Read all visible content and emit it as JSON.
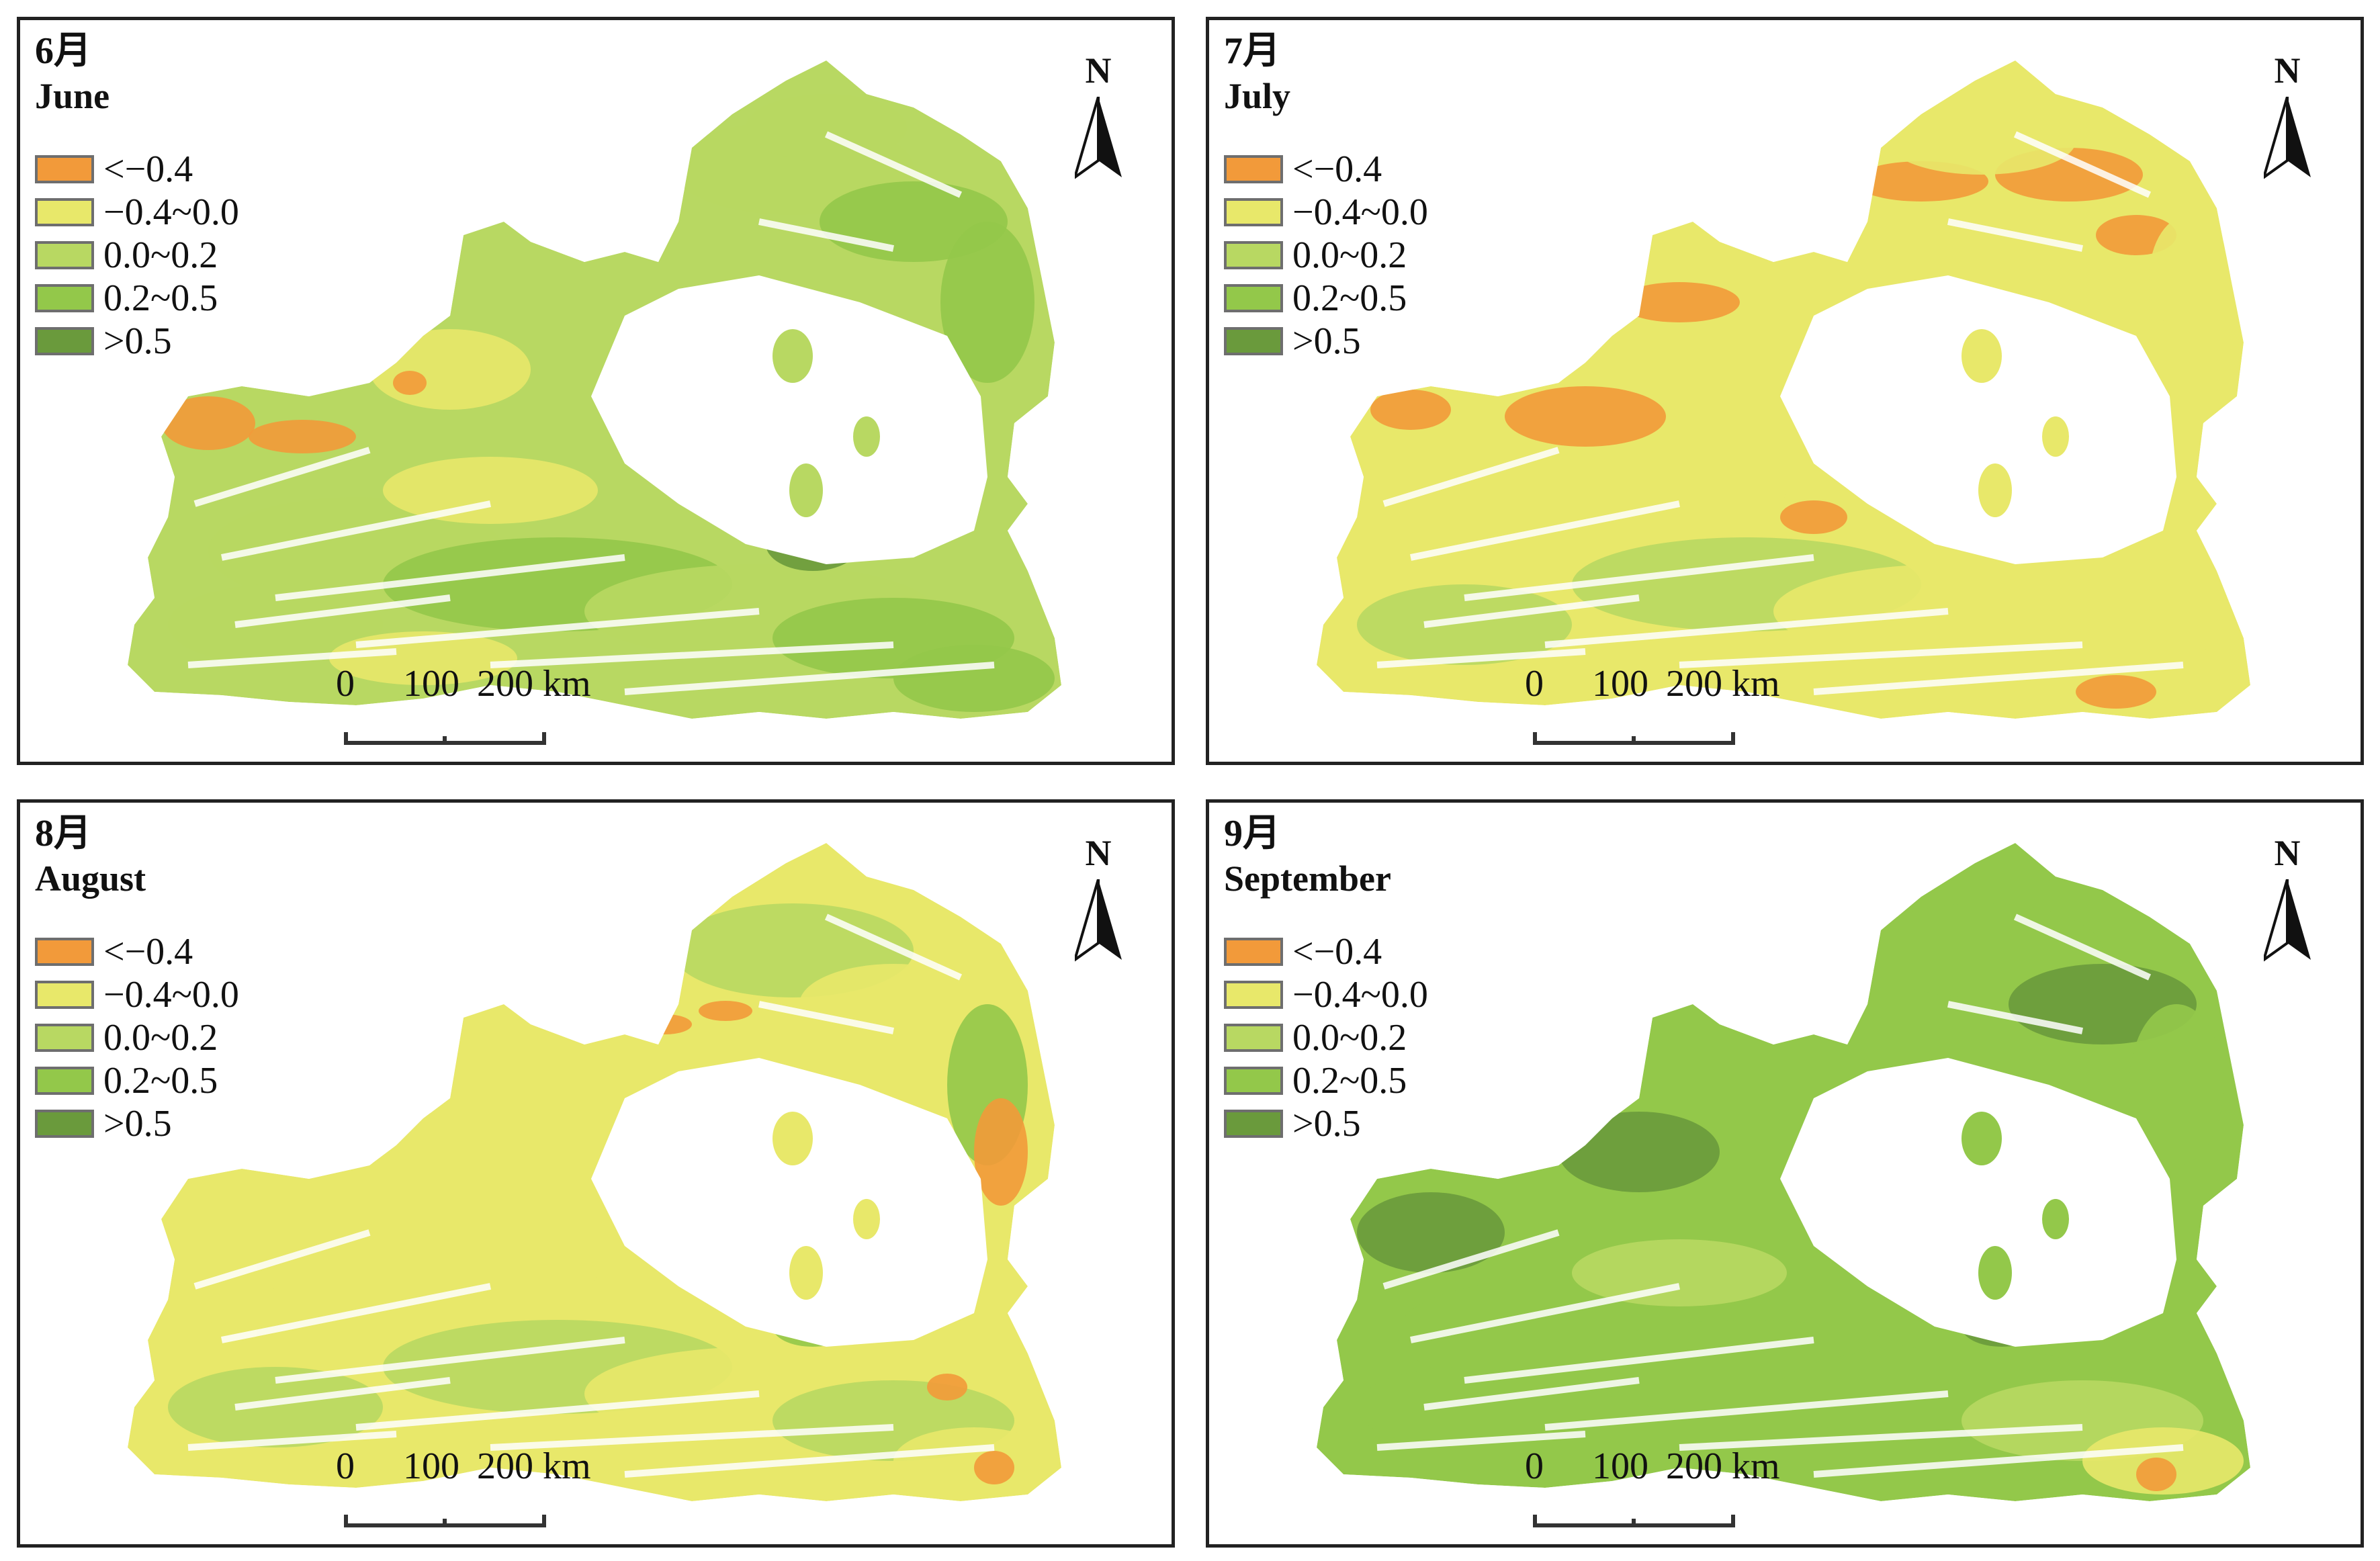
{
  "panels": [
    {
      "month_cn": "6月",
      "month_en": "June",
      "scheme": "june"
    },
    {
      "month_cn": "7月",
      "month_en": "July",
      "scheme": "july"
    },
    {
      "month_cn": "8月",
      "month_en": "August",
      "scheme": "august"
    },
    {
      "month_cn": "9月",
      "month_en": "September",
      "scheme": "september"
    }
  ],
  "legend": [
    {
      "label": "<−0.4",
      "color": "#f29a3a"
    },
    {
      "label": "−0.4~0.0",
      "color": "#e8e86a"
    },
    {
      "label": "0.0~0.2",
      "color": "#b8d862"
    },
    {
      "label": "0.2~0.5",
      "color": "#93c84a"
    },
    {
      "label": ">0.5",
      "color": "#6a9a3c"
    }
  ],
  "north_label": "N",
  "scale": {
    "labels": [
      "0",
      "100",
      "200 km"
    ]
  }
}
